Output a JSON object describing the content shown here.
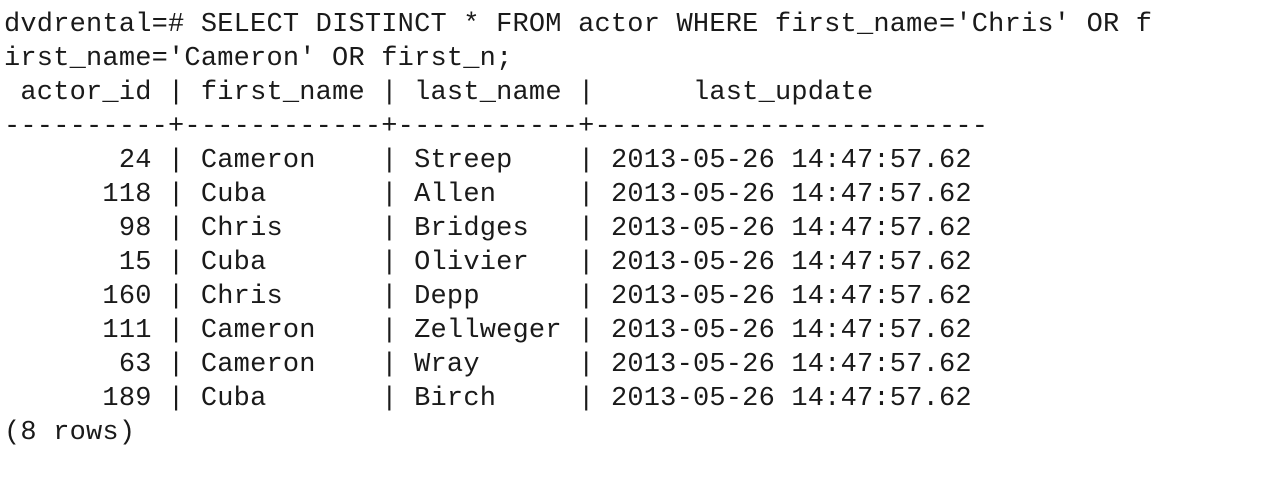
{
  "terminal": {
    "prompt": "dvdrental=# ",
    "command_line1": "SELECT DISTINCT * FROM actor WHERE first_name='Chris' OR f",
    "command_line2": "irst_name='Cameron' OR first_n;",
    "columns": [
      "actor_id",
      "first_name",
      "last_name",
      "last_update"
    ],
    "rows": [
      [
        "24",
        "Cameron",
        "Streep",
        "2013-05-26 14:47:57.62"
      ],
      [
        "118",
        "Cuba",
        "Allen",
        "2013-05-26 14:47:57.62"
      ],
      [
        "98",
        "Chris",
        "Bridges",
        "2013-05-26 14:47:57.62"
      ],
      [
        "15",
        "Cuba",
        "Olivier",
        "2013-05-26 14:47:57.62"
      ],
      [
        "160",
        "Chris",
        "Depp",
        "2013-05-26 14:47:57.62"
      ],
      [
        "111",
        "Cameron",
        "Zellweger",
        "2013-05-26 14:47:57.62"
      ],
      [
        "63",
        "Cameron",
        "Wray",
        "2013-05-26 14:47:57.62"
      ],
      [
        "189",
        "Cuba",
        "Birch",
        "2013-05-26 14:47:57.62"
      ]
    ],
    "footer": "(8 rows)"
  }
}
